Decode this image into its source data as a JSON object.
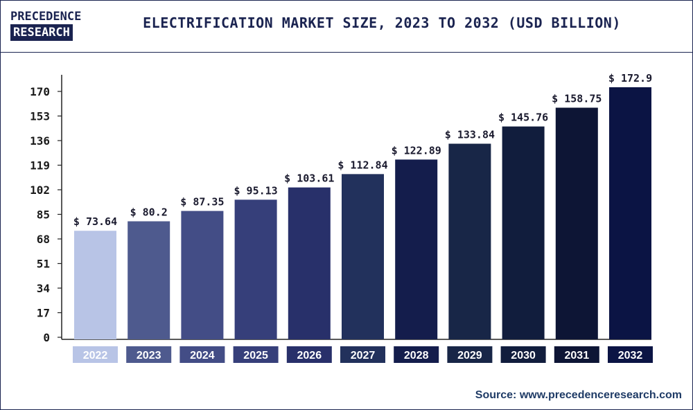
{
  "header": {
    "logo_line1": "PRECEDENCE",
    "logo_line2": "RESEARCH",
    "title": "ELECTRIFICATION MARKET SIZE, 2023 TO 2032 (USD BILLION)"
  },
  "source": "Source: www.precedenceresearch.com",
  "chart_data": {
    "type": "bar",
    "categories": [
      "2022",
      "2023",
      "2024",
      "2025",
      "2026",
      "2027",
      "2028",
      "2029",
      "2030",
      "2031",
      "2032"
    ],
    "values": [
      73.64,
      80.2,
      87.35,
      95.13,
      103.61,
      112.84,
      122.89,
      133.84,
      145.76,
      158.75,
      172.9
    ],
    "data_labels": [
      "$ 73.64",
      "$ 80.2",
      "$ 87.35",
      "$ 95.13",
      "$ 103.61",
      "$ 112.84",
      "$ 122.89",
      "$ 133.84",
      "$ 145.76",
      "$ 158.75",
      "$ 172.9"
    ],
    "yticks": [
      0,
      17,
      34,
      51,
      68,
      85,
      102,
      119,
      136,
      153,
      170
    ],
    "ylim": [
      0,
      170
    ],
    "title": "ELECTRIFICATION MARKET SIZE, 2023 TO 2032 (USD BILLION)",
    "xlabel": "",
    "ylabel": "",
    "grid": false,
    "colors": [
      "#b8c4e6",
      "#4e5a8e",
      "#434d86",
      "#363f7a",
      "#28306a",
      "#22315c",
      "#141d4c",
      "#182647",
      "#111d3d",
      "#0d1535",
      "#0b1444"
    ]
  }
}
